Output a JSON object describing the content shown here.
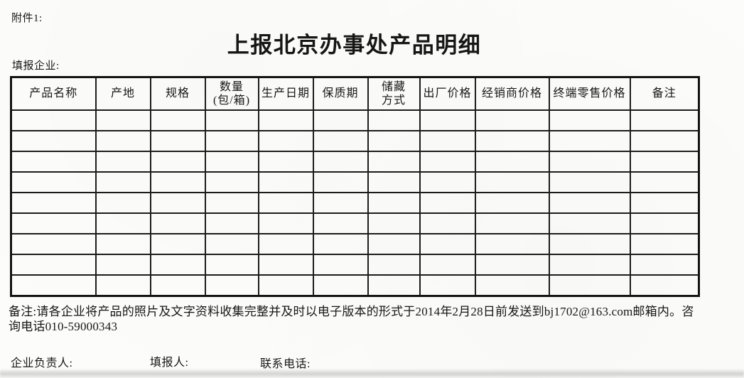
{
  "page": {
    "attachment_label": "附件1:",
    "title": "上报北京办事处产品明细",
    "company_label": "填报企业:"
  },
  "table": {
    "columns": [
      {
        "label": "产品名称"
      },
      {
        "label": "产地"
      },
      {
        "label": "规格"
      },
      {
        "label": "数量\n(包/箱)"
      },
      {
        "label": "生产日期"
      },
      {
        "label": "保质期"
      },
      {
        "label": "储藏\n方式"
      },
      {
        "label": "出厂价格"
      },
      {
        "label": "经销商价格"
      },
      {
        "label": "终端零售价格"
      },
      {
        "label": "备注"
      }
    ],
    "empty_rows": 9
  },
  "note": {
    "line1": "备注:请各企业将产品的照片及文字资料收集完整并及时以电子版本的形式于2014年2月28日前发送到bj1702@163.com邮箱内。咨",
    "line2": "询电话010-59000343"
  },
  "footer": {
    "manager_label": "企业负责人:",
    "filler_label": "填报人:",
    "contact_label": "联系电话:"
  },
  "colors": {
    "paper": "#fcfcfa",
    "ink": "#161616",
    "grid_line": "#1c1c1c"
  }
}
